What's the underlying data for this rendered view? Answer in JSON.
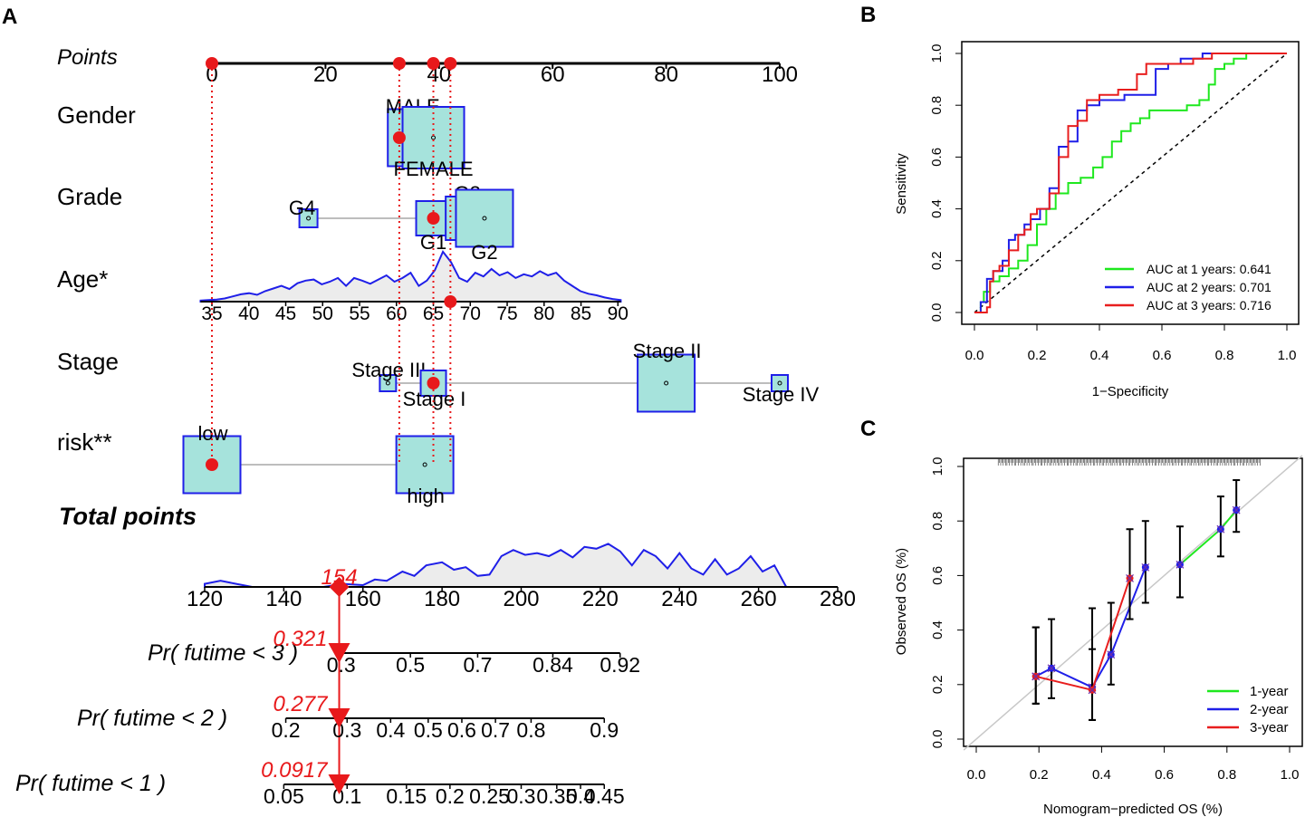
{
  "chart_data": [
    {
      "panel": "A",
      "type": "nomogram",
      "points_axis": {
        "label": "Points",
        "ticks": [
          0,
          20,
          40,
          60,
          80,
          100
        ]
      },
      "variables": [
        {
          "name": "Gender",
          "levels": [
            {
              "label": "MALE",
              "points": 36,
              "weight": 0.55
            },
            {
              "label": "FEMALE",
              "points": 39,
              "weight": 0.6
            }
          ],
          "selected_points": 33
        },
        {
          "name": "Grade",
          "levels": [
            {
              "label": "G4",
              "points": 17,
              "weight": 0.12
            },
            {
              "label": "G1",
              "points": 39,
              "weight": 0.3
            },
            {
              "label": "G3",
              "points": 45,
              "weight": 0.4
            },
            {
              "label": "G2",
              "points": 48,
              "weight": 0.55
            }
          ],
          "selected_points": 39
        },
        {
          "name": "Age*",
          "ticks": [
            "35",
            "40",
            "45",
            "50",
            "55",
            "60",
            "65",
            "70",
            "75",
            "80",
            "85",
            "90"
          ],
          "tick_points": [
            0,
            6.5,
            13,
            19.5,
            26,
            32.5,
            39,
            45.5,
            52,
            58.5,
            65,
            71.5
          ],
          "selected_points": 42
        },
        {
          "name": "Stage",
          "levels": [
            {
              "label": "Stage III",
              "points": 31,
              "weight": 0.1
            },
            {
              "label": "Stage I",
              "points": 39,
              "weight": 0.2
            },
            {
              "label": "Stage II",
              "points": 80,
              "weight": 0.55
            },
            {
              "label": "Stage IV",
              "points": 100,
              "weight": 0.1
            }
          ],
          "selected_points": 39
        },
        {
          "name": "risk**",
          "levels": [
            {
              "label": "low",
              "points": 0,
              "weight": 0.55
            },
            {
              "label": "high",
              "points": 37.5,
              "weight": 0.55
            }
          ],
          "selected_points": 0
        }
      ],
      "selected_points_line": [
        0,
        33,
        39,
        42
      ],
      "total_points": {
        "label": "Total points",
        "ticks": [
          120,
          140,
          160,
          180,
          200,
          220,
          240,
          260,
          280
        ],
        "value": 154,
        "value_label": "154"
      },
      "probabilities": [
        {
          "label": "Pr( futime < 3 )",
          "value": 0.321,
          "value_label": "0.321",
          "ticks": [
            "0.3",
            "0.5",
            "0.7",
            "0.84",
            "0.92"
          ],
          "tick_totals": [
            154.5,
            172,
            189,
            208,
            225
          ]
        },
        {
          "label": "Pr( futime < 2 )",
          "value": 0.277,
          "value_label": "0.277",
          "ticks": [
            "0.2",
            "0.3",
            "0.4",
            "0.5",
            "0.6",
            "0.7",
            "0.8",
            "0.9"
          ],
          "tick_totals": [
            140.5,
            156,
            167,
            176.5,
            185,
            193.5,
            202.5,
            221
          ]
        },
        {
          "label": "Pr( futime < 1 )",
          "value": 0.0917,
          "value_label": "0.0917",
          "ticks": [
            "0.05",
            "0.1",
            "0.15",
            "0.2",
            "0.25",
            "0.3",
            "0.35",
            "0.4",
            "0.45"
          ],
          "tick_totals": [
            140,
            156,
            171,
            182,
            192,
            200,
            209,
            215,
            221
          ]
        }
      ]
    },
    {
      "panel": "B",
      "type": "line",
      "xlabel": "1−Specificity",
      "ylabel": "Sensitivity",
      "xlim": [
        0,
        1
      ],
      "ylim": [
        0,
        1
      ],
      "x_ticks": [
        "0.0",
        "0.2",
        "0.4",
        "0.6",
        "0.8",
        "1.0"
      ],
      "y_ticks": [
        "0.0",
        "0.2",
        "0.4",
        "0.6",
        "0.8",
        "1.0"
      ],
      "series": [
        {
          "name": "AUC at 1 years: 0.641",
          "color": "#1ee81e",
          "x": [
            0,
            0.02,
            0.03,
            0.05,
            0.08,
            0.11,
            0.14,
            0.17,
            0.2,
            0.23,
            0.26,
            0.3,
            0.34,
            0.38,
            0.41,
            0.44,
            0.47,
            0.5,
            0.53,
            0.56,
            0.6,
            0.64,
            0.68,
            0.72,
            0.75,
            0.77,
            0.8,
            0.83,
            0.87,
            1
          ],
          "y": [
            0,
            0.04,
            0.08,
            0.12,
            0.14,
            0.17,
            0.2,
            0.26,
            0.34,
            0.4,
            0.46,
            0.5,
            0.52,
            0.56,
            0.6,
            0.66,
            0.7,
            0.73,
            0.75,
            0.78,
            0.78,
            0.78,
            0.8,
            0.82,
            0.88,
            0.94,
            0.96,
            0.98,
            1,
            1
          ]
        },
        {
          "name": "AUC at 2 years: 0.701",
          "color": "#1f1fe8",
          "x": [
            0,
            0.02,
            0.04,
            0.06,
            0.09,
            0.11,
            0.13,
            0.16,
            0.18,
            0.21,
            0.24,
            0.27,
            0.3,
            0.33,
            0.36,
            0.38,
            0.4,
            0.44,
            0.48,
            0.52,
            0.58,
            0.62,
            0.66,
            0.7,
            0.73,
            0.76,
            1
          ],
          "y": [
            0,
            0.04,
            0.13,
            0.16,
            0.2,
            0.28,
            0.3,
            0.34,
            0.36,
            0.4,
            0.48,
            0.64,
            0.66,
            0.78,
            0.8,
            0.8,
            0.82,
            0.82,
            0.84,
            0.84,
            0.94,
            0.96,
            0.98,
            0.98,
            1,
            1,
            1
          ]
        },
        {
          "name": "AUC at 3 years: 0.716",
          "color": "#e81e1e",
          "x": [
            0,
            0.04,
            0.05,
            0.06,
            0.08,
            0.11,
            0.14,
            0.16,
            0.18,
            0.2,
            0.24,
            0.27,
            0.3,
            0.33,
            0.36,
            0.4,
            0.46,
            0.52,
            0.55,
            0.62,
            0.7,
            0.76,
            1
          ],
          "y": [
            0,
            0.02,
            0.12,
            0.16,
            0.18,
            0.24,
            0.3,
            0.32,
            0.38,
            0.4,
            0.46,
            0.6,
            0.72,
            0.74,
            0.82,
            0.84,
            0.86,
            0.92,
            0.96,
            0.96,
            0.98,
            1,
            1
          ]
        }
      ],
      "reference_line": {
        "x": [
          0,
          1
        ],
        "y": [
          0,
          1
        ],
        "style": "dashed"
      },
      "legend_position": "bottom-right"
    },
    {
      "panel": "C",
      "type": "scatter",
      "xlabel": "Nomogram−predicted OS (%)",
      "ylabel": "Observed OS (%)",
      "xlim": [
        0,
        1
      ],
      "ylim": [
        0,
        1
      ],
      "x_ticks": [
        "0.0",
        "0.2",
        "0.4",
        "0.6",
        "0.8",
        "1.0"
      ],
      "y_ticks": [
        "0.0",
        "0.2",
        "0.4",
        "0.6",
        "0.8",
        "1.0"
      ],
      "series": [
        {
          "name": "1-year",
          "color": "#1ee81e",
          "x": [
            0.65,
            0.78,
            0.83
          ],
          "y": [
            0.64,
            0.77,
            0.84
          ],
          "ci_low": [
            0.52,
            0.67,
            0.76
          ],
          "ci_high": [
            0.78,
            0.89,
            0.95
          ]
        },
        {
          "name": "2-year",
          "color": "#1f1fe8",
          "x": [
            0.19,
            0.24,
            0.37,
            0.43,
            0.54
          ],
          "y": [
            0.23,
            0.26,
            0.19,
            0.31,
            0.63
          ],
          "ci_low": [
            0.13,
            0.15,
            0.07,
            0.2,
            0.5
          ],
          "ci_high": [
            0.41,
            0.44,
            0.48,
            0.5,
            0.8
          ]
        },
        {
          "name": "3-year",
          "color": "#e81e1e",
          "x": [
            0.19,
            0.37,
            0.49
          ],
          "y": [
            0.23,
            0.18,
            0.59
          ],
          "ci_low": [
            0.13,
            0.07,
            0.44
          ],
          "ci_high": [
            0.41,
            0.33,
            0.77
          ]
        }
      ],
      "reference_line": {
        "x": [
          0,
          1
        ],
        "y": [
          0,
          1
        ],
        "style": "solid-gray"
      },
      "legend_position": "bottom-right"
    }
  ]
}
